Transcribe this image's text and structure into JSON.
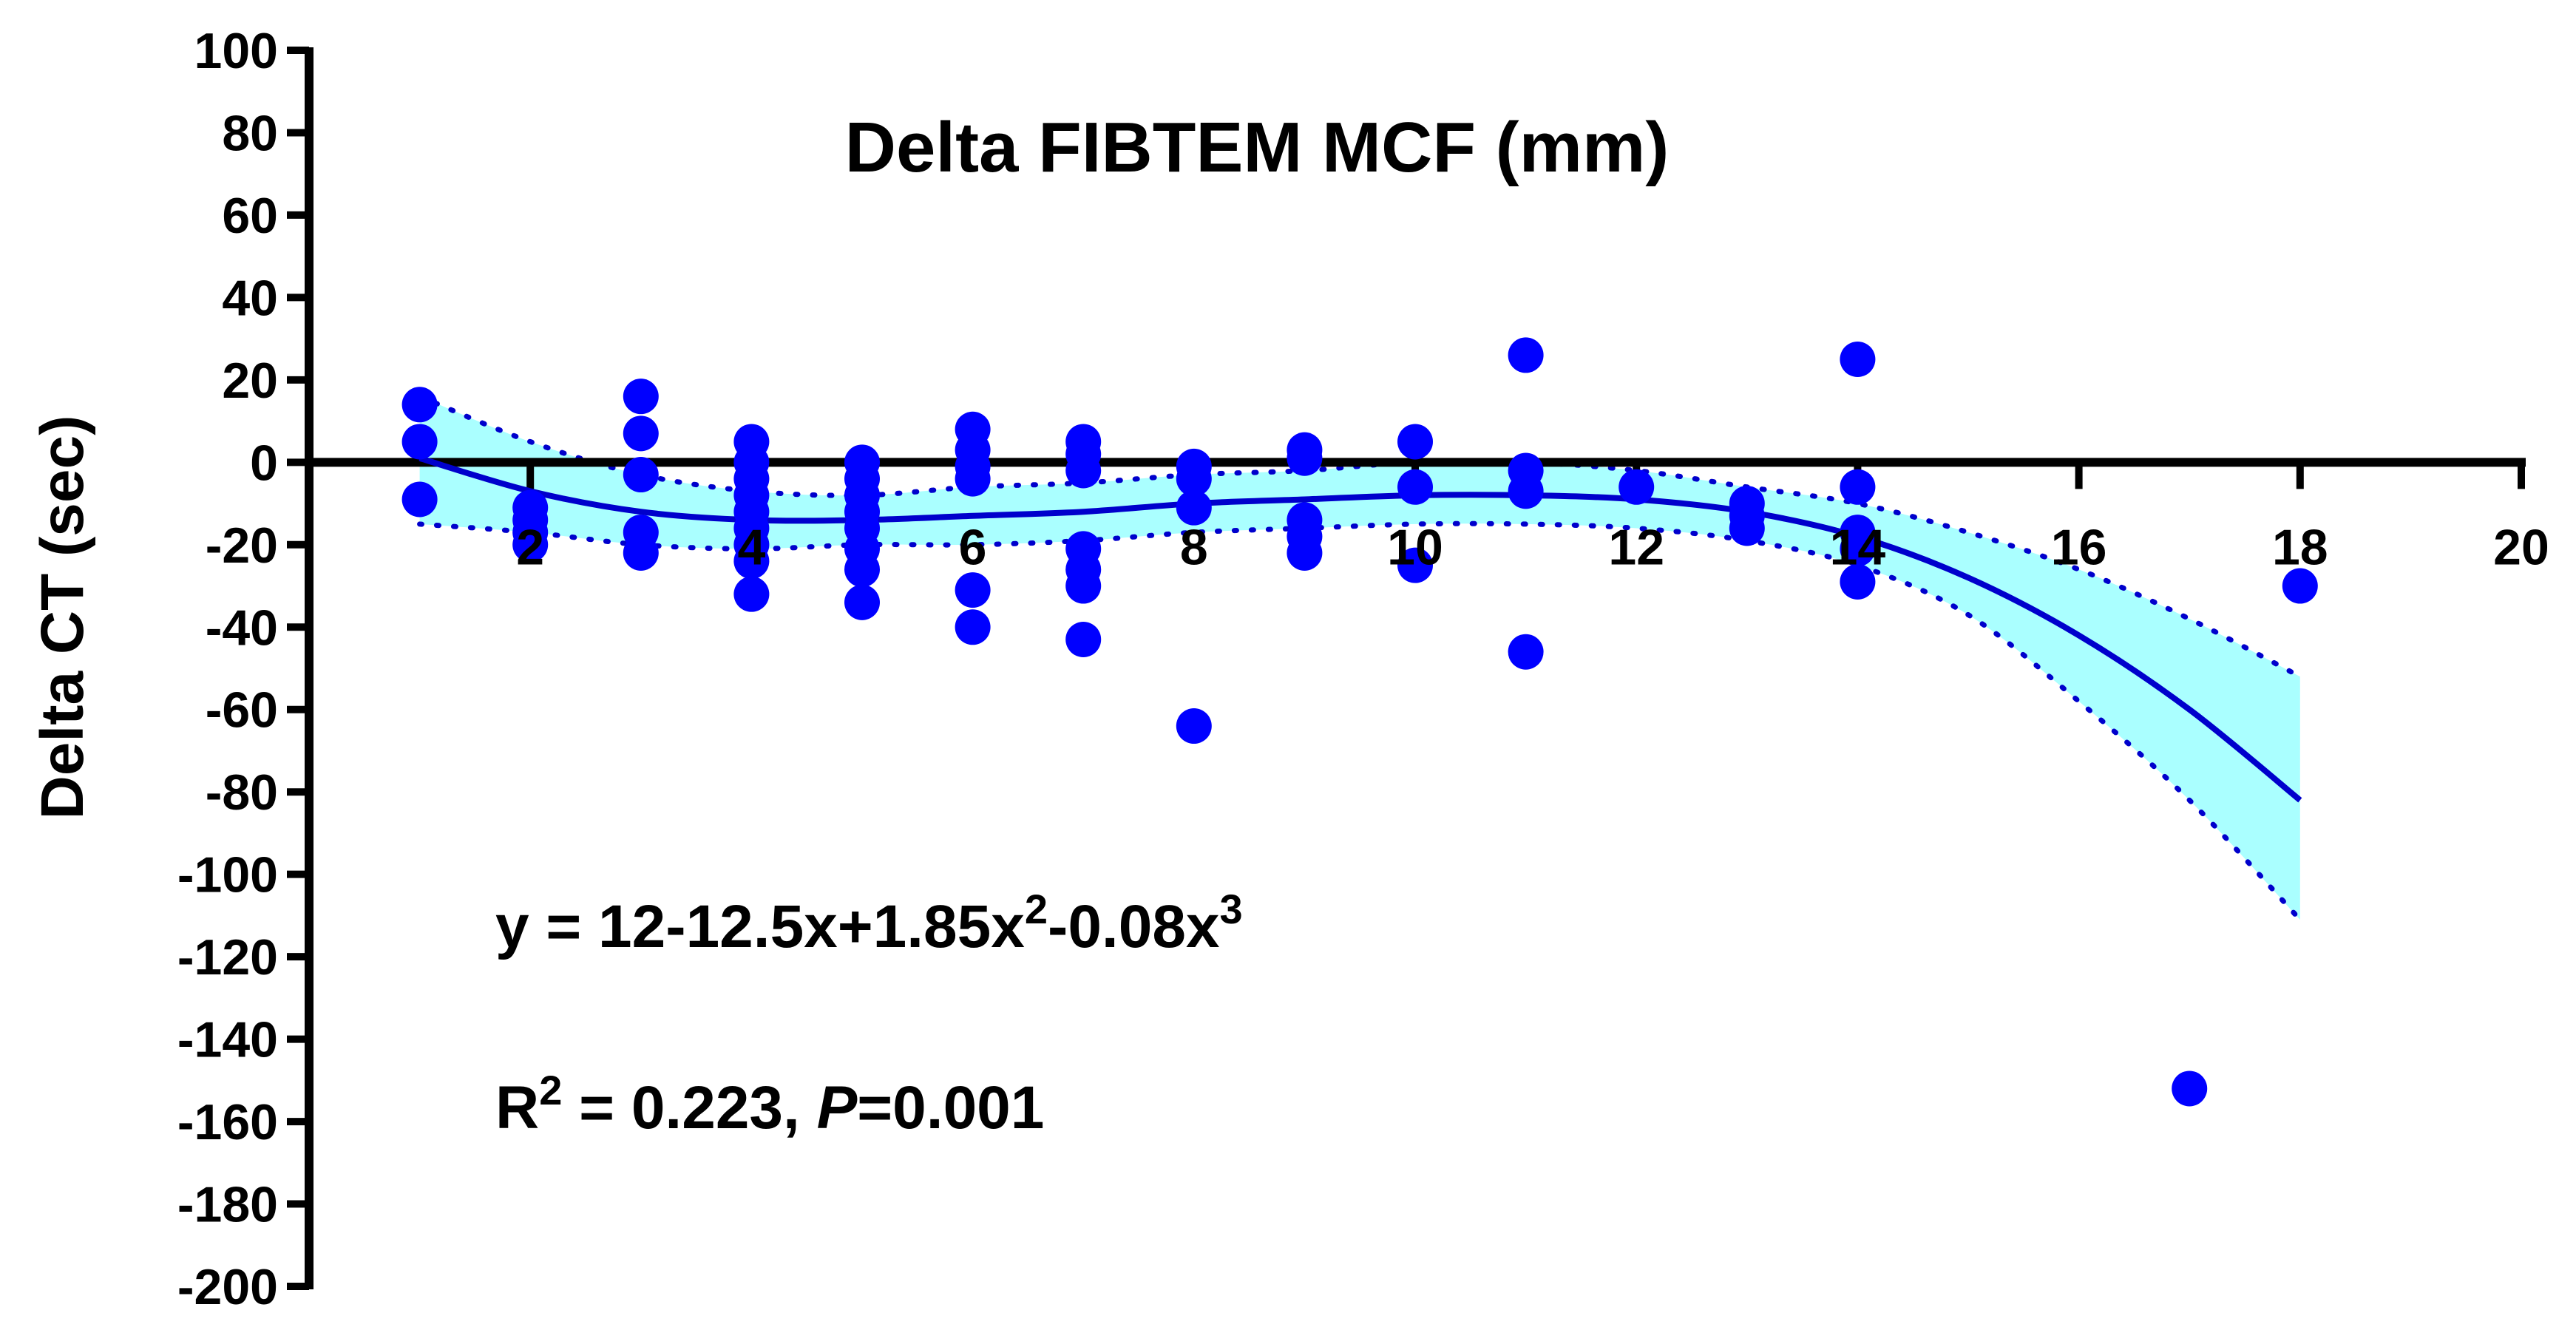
{
  "chart_data": {
    "type": "scatter",
    "title": "Delta FIBTEM MCF (mm)",
    "xlabel": "",
    "ylabel": "Delta CT (sec)",
    "xlim": [
      0,
      20
    ],
    "ylim": [
      -200,
      100
    ],
    "x_ticks": [
      2,
      4,
      6,
      8,
      10,
      12,
      14,
      16,
      18,
      20
    ],
    "y_ticks": [
      100,
      80,
      60,
      40,
      20,
      0,
      -20,
      -40,
      -60,
      -80,
      -100,
      -120,
      -140,
      -160,
      -180,
      -200
    ],
    "grid": false,
    "legend": "none",
    "point_color": "#0000ff",
    "fit_color": "#0000cc",
    "band_color": "#aaffff",
    "points": [
      {
        "x": 1,
        "y": 14
      },
      {
        "x": 1,
        "y": 5
      },
      {
        "x": 1,
        "y": -9
      },
      {
        "x": 2,
        "y": -11
      },
      {
        "x": 2,
        "y": -14
      },
      {
        "x": 2,
        "y": -17
      },
      {
        "x": 2,
        "y": -20
      },
      {
        "x": 3,
        "y": 16
      },
      {
        "x": 3,
        "y": 7
      },
      {
        "x": 3,
        "y": -3
      },
      {
        "x": 3,
        "y": -17
      },
      {
        "x": 3,
        "y": -22
      },
      {
        "x": 4,
        "y": 5
      },
      {
        "x": 4,
        "y": 0
      },
      {
        "x": 4,
        "y": -4
      },
      {
        "x": 4,
        "y": -8
      },
      {
        "x": 4,
        "y": -12
      },
      {
        "x": 4,
        "y": -16
      },
      {
        "x": 4,
        "y": -20
      },
      {
        "x": 4,
        "y": -24
      },
      {
        "x": 4,
        "y": -32
      },
      {
        "x": 5,
        "y": 0
      },
      {
        "x": 5,
        "y": -4
      },
      {
        "x": 5,
        "y": -8
      },
      {
        "x": 5,
        "y": -12
      },
      {
        "x": 5,
        "y": -16
      },
      {
        "x": 5,
        "y": -21
      },
      {
        "x": 5,
        "y": -26
      },
      {
        "x": 5,
        "y": -34
      },
      {
        "x": 6,
        "y": 8
      },
      {
        "x": 6,
        "y": 3
      },
      {
        "x": 6,
        "y": -1
      },
      {
        "x": 6,
        "y": -4
      },
      {
        "x": 6,
        "y": -31
      },
      {
        "x": 6,
        "y": -40
      },
      {
        "x": 7,
        "y": 5
      },
      {
        "x": 7,
        "y": 2
      },
      {
        "x": 7,
        "y": -2
      },
      {
        "x": 7,
        "y": -21
      },
      {
        "x": 7,
        "y": -26
      },
      {
        "x": 7,
        "y": -30
      },
      {
        "x": 7,
        "y": -43
      },
      {
        "x": 8,
        "y": -1
      },
      {
        "x": 8,
        "y": -4
      },
      {
        "x": 8,
        "y": -11
      },
      {
        "x": 8,
        "y": -64
      },
      {
        "x": 9,
        "y": 3
      },
      {
        "x": 9,
        "y": 1
      },
      {
        "x": 9,
        "y": -14
      },
      {
        "x": 9,
        "y": -18
      },
      {
        "x": 9,
        "y": -22
      },
      {
        "x": 10,
        "y": 5
      },
      {
        "x": 10,
        "y": -6
      },
      {
        "x": 10,
        "y": -25
      },
      {
        "x": 11,
        "y": 26
      },
      {
        "x": 11,
        "y": -2
      },
      {
        "x": 11,
        "y": -7
      },
      {
        "x": 11,
        "y": -46
      },
      {
        "x": 12,
        "y": -6
      },
      {
        "x": 13,
        "y": -10
      },
      {
        "x": 13,
        "y": -13
      },
      {
        "x": 13,
        "y": -16
      },
      {
        "x": 14,
        "y": 25
      },
      {
        "x": 14,
        "y": -6
      },
      {
        "x": 14,
        "y": -17
      },
      {
        "x": 14,
        "y": -21
      },
      {
        "x": 14,
        "y": -29
      },
      {
        "x": 17,
        "y": -152
      },
      {
        "x": 18,
        "y": -30
      }
    ],
    "fit_curve": {
      "x": [
        1,
        2,
        3,
        4,
        5,
        6,
        7,
        8,
        9,
        10,
        11,
        12,
        13,
        14,
        15,
        16,
        17,
        18
      ],
      "y": [
        1,
        -7,
        -12,
        -14,
        -14,
        -13,
        -12,
        -10,
        -9,
        -8,
        -8,
        -9,
        -12,
        -18,
        -28,
        -42,
        -60,
        -82
      ]
    },
    "ci_band": {
      "x": [
        1,
        2,
        3,
        4,
        5,
        6,
        7,
        8,
        9,
        10,
        11,
        12,
        13,
        14,
        15,
        16,
        17,
        18
      ],
      "upper": [
        16,
        5,
        -3,
        -7,
        -8,
        -6,
        -5,
        -3,
        -2,
        0,
        0,
        -2,
        -6,
        -10,
        -17,
        -26,
        -38,
        -52
      ],
      "lower": [
        -15,
        -17,
        -20,
        -21,
        -20,
        -20,
        -19,
        -17,
        -16,
        -15,
        -15,
        -16,
        -19,
        -25,
        -37,
        -58,
        -82,
        -111
      ]
    },
    "annotations": {
      "equation_base": "y = 12-12.5x+1.85x",
      "equation_exp1": "2",
      "equation_mid": "-0.08x",
      "equation_exp2": "3",
      "r2_base": "R",
      "r2_exp": "2",
      "r2_value": " = 0.223, ",
      "p_label": "P",
      "p_value": "=0.001"
    }
  }
}
